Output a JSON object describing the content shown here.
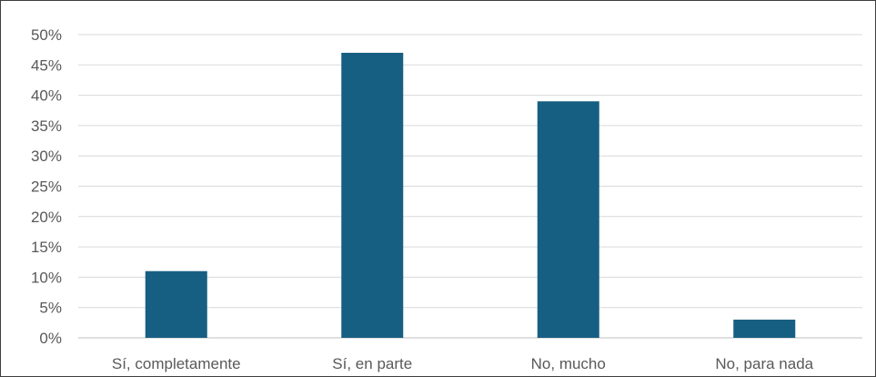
{
  "chart_data": {
    "type": "bar",
    "categories": [
      "Sí, completamente",
      "Sí, en parte",
      "No, mucho",
      "No, para nada"
    ],
    "series": [
      {
        "values": [
          11,
          47,
          39,
          3
        ]
      }
    ],
    "value_format": "percent",
    "ylim": [
      0,
      50
    ],
    "ytick_step": 5,
    "yticks": [
      "0%",
      "5%",
      "10%",
      "15%",
      "20%",
      "25%",
      "30%",
      "35%",
      "40%",
      "45%",
      "50%"
    ],
    "grid": true,
    "legend": "none",
    "title": "",
    "xlabel": "",
    "ylabel": "",
    "colors": {
      "bar": "#175f82",
      "grid": "#d9d9d9",
      "text": "#595959",
      "border": "#3f3f3f"
    }
  }
}
